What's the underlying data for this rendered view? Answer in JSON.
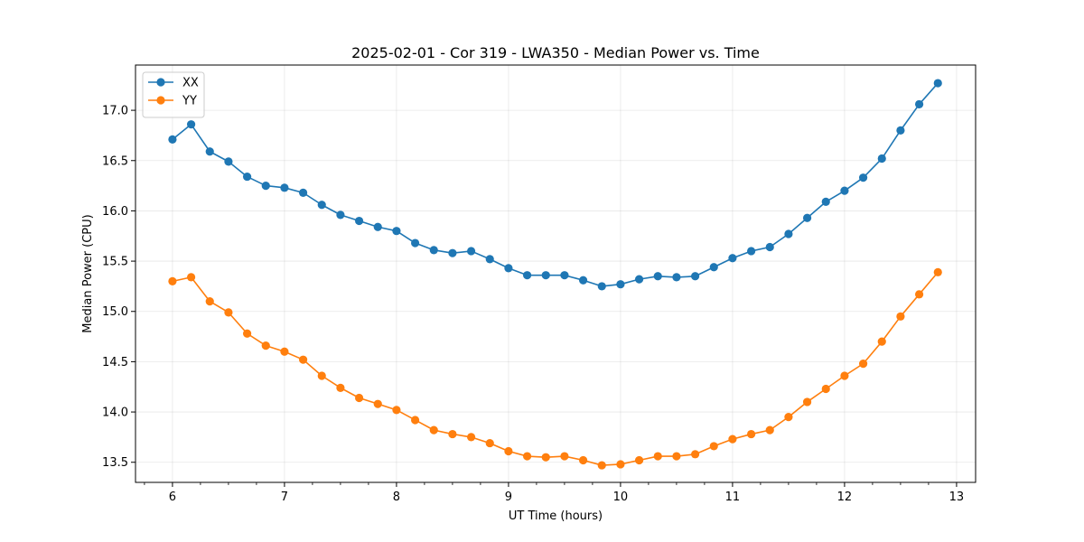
{
  "chart_data": {
    "type": "line",
    "title": "2025-02-01 - Cor 319 - LWA350 - Median Power vs. Time",
    "xlabel": "UT Time (hours)",
    "ylabel": "Median Power (CPU)",
    "xlim": [
      5.67,
      13.17
    ],
    "ylim": [
      13.3,
      17.45
    ],
    "x_ticks": [
      6,
      7,
      8,
      9,
      10,
      11,
      12,
      13
    ],
    "x_tick_labels": [
      "6",
      "7",
      "8",
      "9",
      "10",
      "11",
      "12",
      "13"
    ],
    "x_minor_ticks": [
      5.75,
      6.25,
      6.5,
      6.75,
      7.25,
      7.5,
      7.75,
      8.25,
      8.5,
      8.75,
      9.25,
      9.5,
      9.75,
      10.25,
      10.5,
      10.75,
      11.25,
      11.5,
      11.75,
      12.25,
      12.5,
      12.75
    ],
    "y_ticks": [
      13.5,
      14.0,
      14.5,
      15.0,
      15.5,
      16.0,
      16.5,
      17.0
    ],
    "y_tick_labels": [
      "13.5",
      "14.0",
      "14.5",
      "15.0",
      "15.5",
      "16.0",
      "16.5",
      "17.0"
    ],
    "grid": true,
    "legend_position": "top-left",
    "x": [
      6.0,
      6.1667,
      6.3333,
      6.5,
      6.6667,
      6.8333,
      7.0,
      7.1667,
      7.3333,
      7.5,
      7.6667,
      7.8333,
      8.0,
      8.1667,
      8.3333,
      8.5,
      8.6667,
      8.8333,
      9.0,
      9.1667,
      9.3333,
      9.5,
      9.6667,
      9.8333,
      10.0,
      10.1667,
      10.3333,
      10.5,
      10.6667,
      10.8333,
      11.0,
      11.1667,
      11.3333,
      11.5,
      11.6667,
      11.8333,
      12.0,
      12.1667,
      12.3333,
      12.5,
      12.6667,
      12.8333
    ],
    "series": [
      {
        "name": "XX",
        "color": "#1f77b4",
        "values": [
          16.71,
          16.86,
          16.59,
          16.49,
          16.34,
          16.25,
          16.23,
          16.18,
          16.06,
          15.96,
          15.9,
          15.84,
          15.8,
          15.68,
          15.61,
          15.58,
          15.6,
          15.52,
          15.43,
          15.36,
          15.36,
          15.36,
          15.31,
          15.25,
          15.27,
          15.32,
          15.35,
          15.34,
          15.35,
          15.44,
          15.53,
          15.6,
          15.64,
          15.77,
          15.93,
          16.09,
          16.2,
          16.33,
          16.52,
          16.8,
          17.06,
          17.27
        ]
      },
      {
        "name": "YY",
        "color": "#ff7f0e",
        "values": [
          15.3,
          15.34,
          15.1,
          14.99,
          14.78,
          14.66,
          14.6,
          14.52,
          14.36,
          14.24,
          14.14,
          14.08,
          14.02,
          13.92,
          13.82,
          13.78,
          13.75,
          13.69,
          13.61,
          13.56,
          13.55,
          13.56,
          13.52,
          13.47,
          13.48,
          13.52,
          13.56,
          13.56,
          13.58,
          13.66,
          13.73,
          13.78,
          13.82,
          13.95,
          14.1,
          14.23,
          14.36,
          14.48,
          14.7,
          14.95,
          15.17,
          15.39
        ]
      }
    ]
  }
}
